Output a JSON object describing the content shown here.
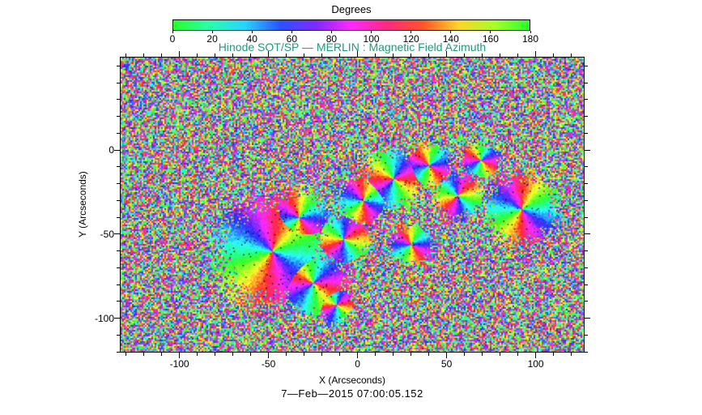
{
  "colors": {
    "background": "#ffffff",
    "title_color": "#21997f",
    "axis_color": "#000000"
  },
  "colorbar": {
    "title": "Degrees",
    "min": 0,
    "max": 180,
    "tick_labels": [
      "0",
      "20",
      "40",
      "60",
      "80",
      "100",
      "120",
      "140",
      "160",
      "180"
    ]
  },
  "chart_data": {
    "type": "heatmap",
    "title": "Hinode SOT/SP — MERLIN : Magnetic Field Azimuth",
    "xlabel": "X (Arcseconds)",
    "ylabel": "Y (Arcseconds)",
    "xlim": [
      -133,
      127
    ],
    "ylim": [
      -120,
      55
    ],
    "x_ticks": [
      -100,
      -50,
      0,
      50,
      100
    ],
    "x_tick_labels": [
      "-100",
      "-50",
      "0",
      "50",
      "100"
    ],
    "y_ticks": [
      0,
      -50,
      -100
    ],
    "y_tick_labels": [
      "0",
      "-50",
      "-100"
    ],
    "minor_tick_step": 10,
    "value_label": "Degrees",
    "value_range": [
      0,
      180
    ],
    "grid": false,
    "legend_position": "colorbar-top",
    "colormap": {
      "type": "cyclic-rainbow",
      "hue_start": 120,
      "hue_span": 360,
      "saturation": 1.0,
      "lightness": 0.58
    },
    "marker_density": 0.02,
    "coherent_regions": [
      {
        "x": -48,
        "y": -60,
        "r": 26,
        "phase": 0.1
      },
      {
        "x": -25,
        "y": -79,
        "r": 16,
        "phase": 0.55
      },
      {
        "x": -33,
        "y": -40,
        "r": 13,
        "phase": 0.3
      },
      {
        "x": -8,
        "y": -53,
        "r": 12,
        "phase": 0.8
      },
      {
        "x": 3,
        "y": -30,
        "r": 12,
        "phase": 0.2
      },
      {
        "x": 20,
        "y": -17,
        "r": 14,
        "phase": 0.65
      },
      {
        "x": 40,
        "y": -9,
        "r": 11,
        "phase": 0.4
      },
      {
        "x": 56,
        "y": -27,
        "r": 11,
        "phase": 0.9
      },
      {
        "x": 92,
        "y": -35,
        "r": 17,
        "phase": 0.15
      },
      {
        "x": 69,
        "y": -6,
        "r": 9,
        "phase": 0.5
      },
      {
        "x": -12,
        "y": -92,
        "r": 9,
        "phase": 0.7
      },
      {
        "x": 30,
        "y": -56,
        "r": 10,
        "phase": 0.35
      }
    ]
  },
  "footer": {
    "timestamp": "7—Feb—2015 07:00:05.152"
  }
}
